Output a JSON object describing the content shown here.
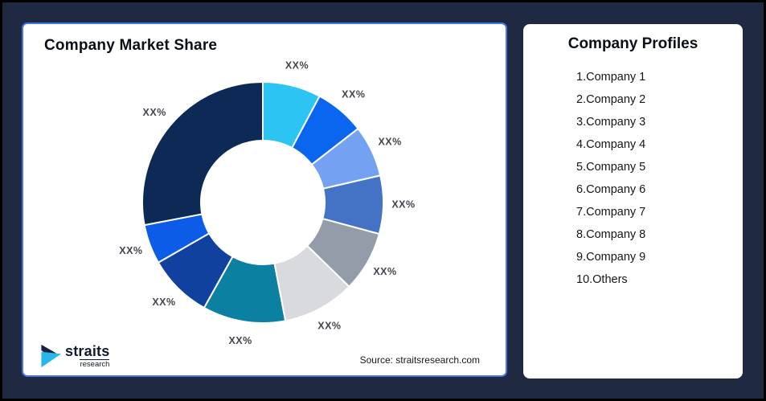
{
  "left_panel": {
    "title": "Company Market Share",
    "source": "Source: straitsresearch.com"
  },
  "logo": {
    "name": "straits",
    "sub": "research",
    "icon_navy": "#16233F",
    "icon_cyan": "#27B7EA"
  },
  "right_panel": {
    "title": "Company Profiles",
    "items": [
      "1.Company 1",
      "2.Company 2",
      "3.Company 3",
      "4.Company 4",
      "5.Company 5",
      "6.Company 6",
      "7.Company 7",
      "8.Company 8",
      "9.Company 9",
      "10.Others"
    ]
  },
  "chart_data": {
    "type": "pie",
    "subtype": "donut",
    "title": "Company Market Share",
    "start_angle_deg": 0,
    "direction": "clockwise",
    "labels": [
      "XX%",
      "XX%",
      "XX%",
      "XX%",
      "XX%",
      "XX%",
      "XX%",
      "XX%",
      "XX%",
      "XX%"
    ],
    "values_pct": [
      7.8,
      6.7,
      6.9,
      7.8,
      8.1,
      9.7,
      11.1,
      8.6,
      5.3,
      28.0
    ],
    "colors": [
      "#2BC4F3",
      "#0A66EF",
      "#74A1F2",
      "#4473C5",
      "#959CA9",
      "#D8DADE",
      "#0C80A0",
      "#11419E",
      "#0C5CE8",
      "#0D2A56"
    ],
    "gap_color": "#FFFFFF",
    "legend_position": "none",
    "label_position": "outside"
  },
  "theme": {
    "background": "#1F2942",
    "card_background": "#FFFFFF",
    "left_card_border": "#4A73E8",
    "label_color": "#43464D",
    "title_color": "#0B0F17"
  }
}
